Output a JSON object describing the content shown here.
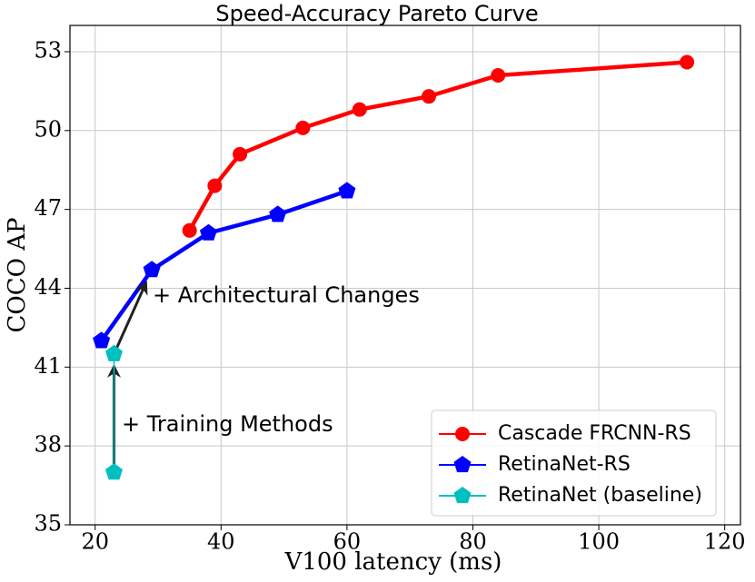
{
  "chart_data": {
    "type": "line",
    "title": "Speed-Accuracy Pareto Curve",
    "x_label": "V100 latency (ms)",
    "y_label": "COCO AP",
    "xlim": [
      16,
      122.5
    ],
    "ylim": [
      35,
      54
    ],
    "xticks": [
      20,
      40,
      60,
      80,
      100,
      120
    ],
    "yticks": [
      35,
      38,
      41,
      44,
      47,
      50,
      53
    ],
    "grid": true,
    "legend": "lower right",
    "series": [
      {
        "name": "Cascade FRCNN-RS",
        "color": "#ff0000",
        "marker": "circle",
        "x": [
          35,
          39,
          43,
          53,
          62,
          73,
          84,
          114
        ],
        "values": [
          46.2,
          47.9,
          49.1,
          50.1,
          50.8,
          51.3,
          52.1,
          52.6
        ]
      },
      {
        "name": "RetinaNet-RS",
        "color": "#0000ff",
        "marker": "pentagon",
        "x": [
          21,
          29,
          38,
          49,
          60
        ],
        "values": [
          42,
          44.7,
          46.1,
          46.8,
          47.7
        ]
      },
      {
        "name": "RetinaNet (baseline)",
        "color": "#00bfbf",
        "marker": "pentagon",
        "x": [
          23,
          23
        ],
        "values": [
          37,
          41.5
        ]
      }
    ],
    "annotations": [
      "+ Architectural Changes",
      "+ Training Methods"
    ]
  }
}
